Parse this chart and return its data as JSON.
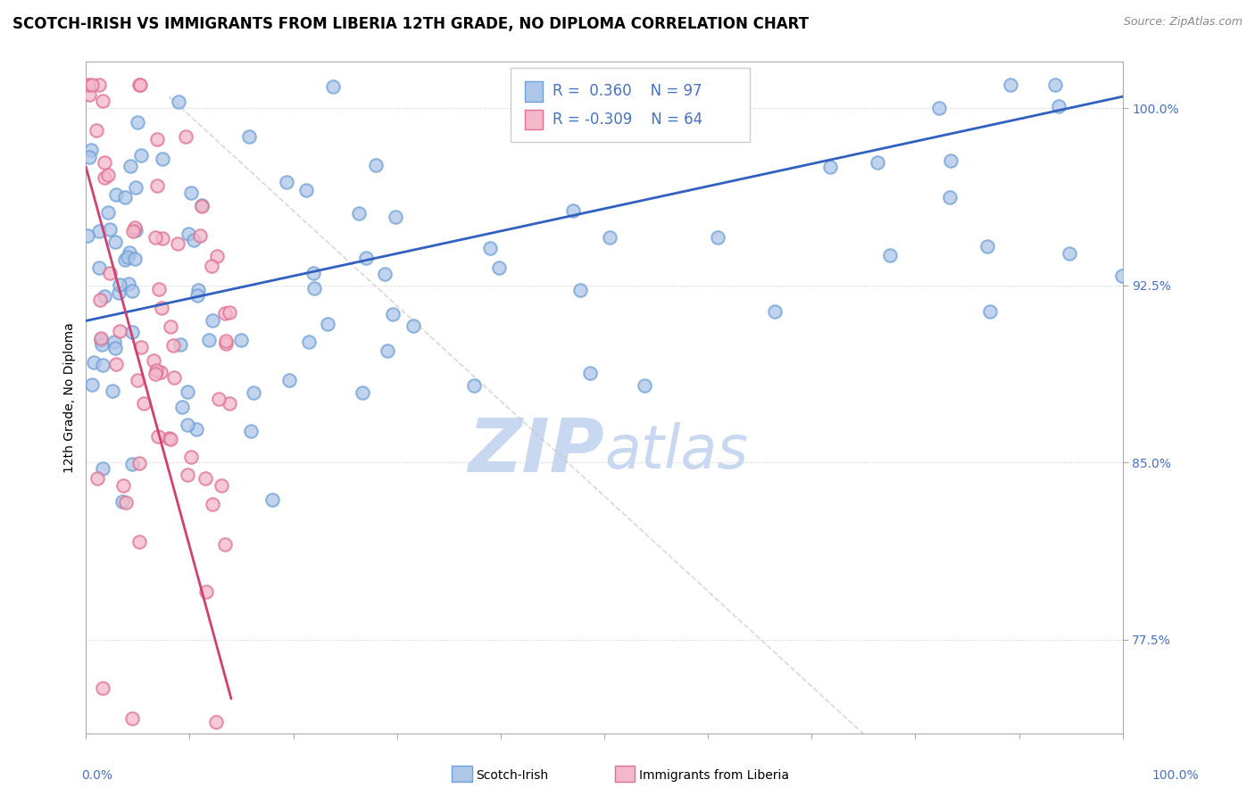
{
  "title": "SCOTCH-IRISH VS IMMIGRANTS FROM LIBERIA 12TH GRADE, NO DIPLOMA CORRELATION CHART",
  "source": "Source: ZipAtlas.com",
  "ylabel": "12th Grade, No Diploma",
  "legend_label_blue": "Scotch-Irish",
  "legend_label_pink": "Immigrants from Liberia",
  "blue_color_fill": "#aec6e8",
  "blue_color_edge": "#6fa0d8",
  "pink_color_fill": "#f4b8cb",
  "pink_color_edge": "#e07090",
  "blue_line_color": "#3060c0",
  "pink_line_color": "#d04070",
  "ref_line_color": "#c8c8c8",
  "watermark_color": "#c8d8f0",
  "blue_R": 0.36,
  "blue_N": 97,
  "pink_R": -0.309,
  "pink_N": 64,
  "xmin": 0.0,
  "xmax": 100.0,
  "ymin": 73.5,
  "ymax": 102.0,
  "ytick_vals": [
    77.5,
    85.0,
    92.5,
    100.0
  ],
  "title_fontsize": 12,
  "source_fontsize": 9,
  "axis_label_fontsize": 10,
  "tick_fontsize": 10,
  "legend_fontsize": 12,
  "scatter_size": 110,
  "scatter_lw": 1.5
}
